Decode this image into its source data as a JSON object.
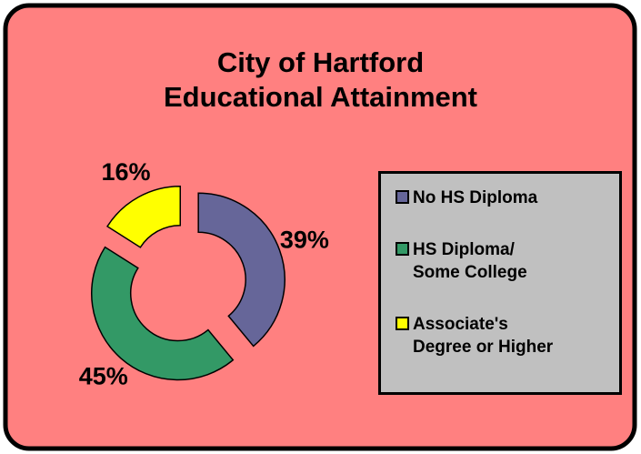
{
  "chart_data": {
    "type": "doughnut",
    "title": "City of Hartford\nEducational Attainment",
    "categories": [
      "No HS Diploma",
      "HS Diploma/\nSome College",
      "Associate's\nDegree or Higher"
    ],
    "values": [
      39,
      45,
      16
    ],
    "value_labels": [
      "39%",
      "45%",
      "16%"
    ],
    "colors": [
      "#666699",
      "#339966",
      "#ffff00"
    ],
    "legend": "right"
  }
}
